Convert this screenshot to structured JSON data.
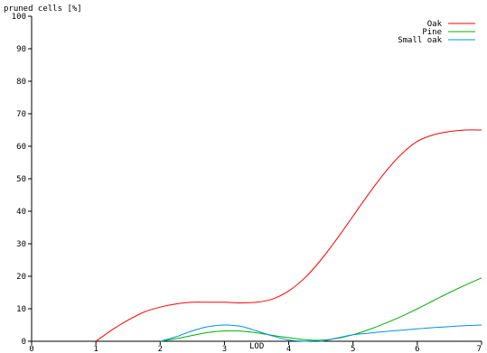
{
  "chart_data": {
    "type": "line",
    "ylabel": "pruned cells [%]",
    "xlabel": "LOD",
    "xlim": [
      0,
      7
    ],
    "ylim": [
      0,
      100
    ],
    "x_ticks": [
      "0",
      "1",
      "2",
      "3",
      "4",
      "5",
      "6",
      "7"
    ],
    "y_ticks": [
      "0",
      "10",
      "20",
      "30",
      "40",
      "50",
      "60",
      "70",
      "80",
      "90",
      "100"
    ],
    "grid": false,
    "legend_position": "top-right",
    "series": [
      {
        "name": "Oak",
        "color": "#ff0000",
        "x": [
          1,
          1.25,
          1.5,
          1.75,
          2,
          2.25,
          2.5,
          2.75,
          3,
          3.25,
          3.5,
          3.75,
          4,
          4.25,
          4.5,
          4.75,
          5,
          5.25,
          5.5,
          5.75,
          6,
          6.25,
          6.5,
          6.75,
          7
        ],
        "y": [
          0,
          3.5,
          6.5,
          9,
          10.5,
          11.5,
          12,
          12,
          12,
          11.8,
          12,
          13,
          15.5,
          19.5,
          25,
          31.5,
          38.5,
          45.5,
          52,
          57.5,
          61.5,
          63.5,
          64.5,
          65,
          65
        ]
      },
      {
        "name": "Pine",
        "color": "#00b000",
        "x": [
          2,
          2.25,
          2.5,
          2.75,
          3,
          3.25,
          3.5,
          3.75,
          4,
          4.25,
          4.5,
          4.75,
          5,
          5.25,
          5.5,
          5.75,
          6,
          6.25,
          6.5,
          6.75,
          7
        ],
        "y": [
          0,
          0.8,
          1.8,
          2.7,
          3.2,
          3.1,
          2.6,
          1.8,
          1.1,
          0.5,
          0.3,
          0.9,
          2,
          3.6,
          5.5,
          7.6,
          10,
          12.5,
          15,
          17.3,
          19.5
        ]
      },
      {
        "name": "Small oak",
        "color": "#0090e0",
        "x": [
          2,
          2.25,
          2.5,
          2.75,
          3,
          3.25,
          3.5,
          3.75,
          4,
          4.25,
          4.5,
          4.75,
          5,
          5.25,
          5.5,
          5.75,
          6,
          6.25,
          6.5,
          6.75,
          7
        ],
        "y": [
          0,
          1.4,
          3.2,
          4.5,
          5,
          4.6,
          3.2,
          1.6,
          0.4,
          0,
          0,
          1,
          2,
          2.5,
          3,
          3.4,
          3.8,
          4.2,
          4.5,
          4.8,
          5
        ]
      }
    ]
  }
}
